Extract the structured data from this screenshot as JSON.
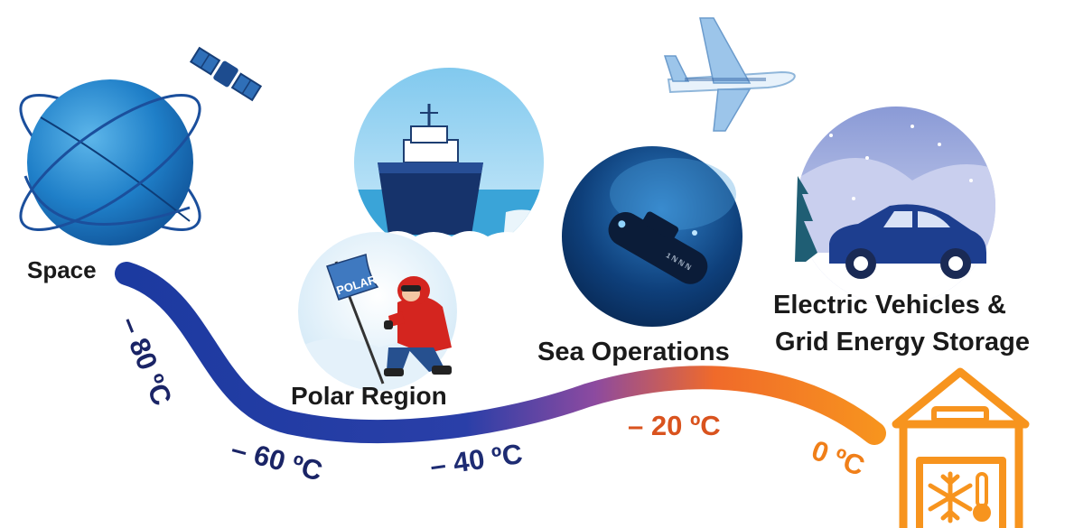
{
  "labels": {
    "space": "Space",
    "polar": "Polar Region",
    "sea": "Sea Operations",
    "ev_line1": "Electric Vehicles &",
    "ev_line2": "Grid Energy Storage"
  },
  "temperatures": {
    "t1": "– 80 ºC",
    "t2": "– 60 ºC",
    "t3": "– 40 ºC",
    "t4": "– 20 ºC",
    "t5": "0 ºC"
  },
  "flag_text": "POLAR",
  "sub_text": "1 ℕ ℕ ℕ",
  "icons": [
    "planet-icon",
    "satellite-icon",
    "airplane-icon",
    "ship-icon",
    "explorer-icon",
    "submarine-icon",
    "car-icon",
    "cold-storage-icon",
    "snowflake-icon",
    "thermometer-icon"
  ],
  "colors": {
    "cold": "#1f3fa8",
    "mid": "#8a4a9a",
    "warm": "#f58a1f",
    "label_cold": "#1a2466",
    "label_warm": "#f07f19",
    "label_mid": "#d9531e"
  }
}
